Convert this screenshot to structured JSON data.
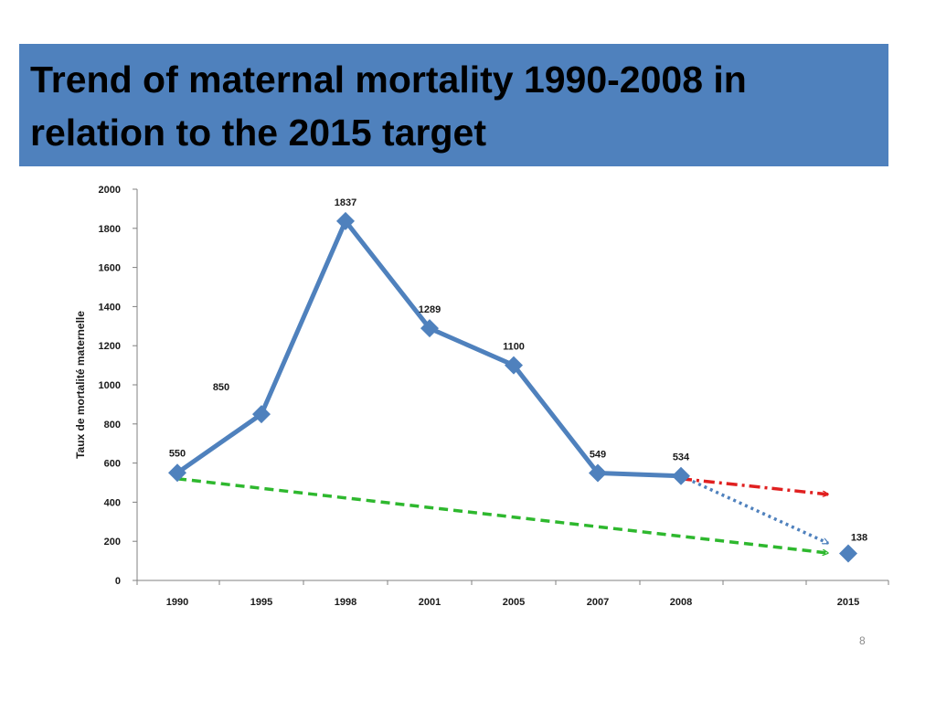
{
  "slide": {
    "title_line1": "Trend of maternal mortality 1990-2008 in",
    "title_line2": "relation to the 2015 target",
    "number": "8",
    "banner_color": "#4F81BD"
  },
  "chart_data": {
    "type": "line",
    "title": "",
    "xlabel": "",
    "ylabel": "Taux de mortalité maternelle",
    "ylim": [
      0,
      2000
    ],
    "yticks": [
      0,
      200,
      400,
      600,
      800,
      1000,
      1200,
      1400,
      1600,
      1800,
      2000
    ],
    "categories": [
      "1990",
      "1995",
      "1998",
      "2001",
      "2005",
      "2007",
      "2008",
      "2015"
    ],
    "grid": false,
    "legend": "none",
    "series": [
      {
        "values": [
          550,
          850,
          1837,
          1289,
          1100,
          549,
          534,
          null
        ],
        "labels": [
          "550",
          "850",
          "1837",
          "1289",
          "1100",
          "549",
          "534",
          ""
        ],
        "color": "#4F81BD",
        "style": "solid",
        "marker": "diamond"
      },
      {
        "values": [
          null,
          null,
          null,
          null,
          null,
          null,
          null,
          138
        ],
        "labels": [
          "",
          "",
          "",
          "",
          "",
          "",
          "",
          "138"
        ],
        "color": "#4F81BD",
        "style": "none",
        "marker": "diamond"
      }
    ],
    "trend_arrows": [
      {
        "from": {
          "x": "1990",
          "y": 520
        },
        "to": {
          "x": "2015",
          "y": 140
        },
        "color": "#2EB82E",
        "style": "dashed"
      },
      {
        "from": {
          "x": "2008",
          "y": 534
        },
        "to": {
          "x": "2015",
          "y": 190
        },
        "color": "#4F81BD",
        "style": "dotted"
      },
      {
        "from": {
          "x": "2008",
          "y": 520
        },
        "to": {
          "x": "2015",
          "y": 440
        },
        "color": "#E02020",
        "style": "dash-dot"
      }
    ]
  }
}
